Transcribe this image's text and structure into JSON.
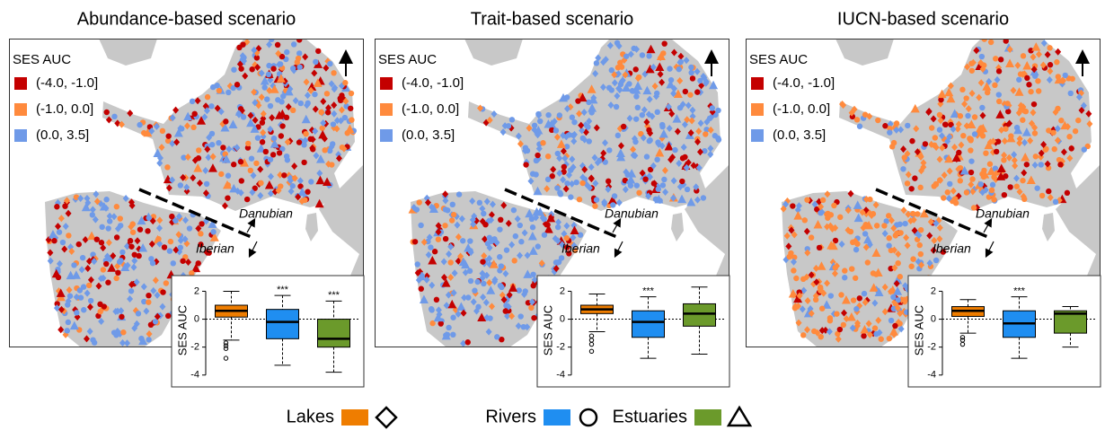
{
  "legend": [
    {
      "name": "Lakes",
      "color": "#ef7d00",
      "shape": "diamond"
    },
    {
      "name": "Rivers",
      "color": "#1f8ef1",
      "shape": "circle"
    },
    {
      "name": "Estuaries",
      "color": "#6b9a2b",
      "shape": "triangle"
    }
  ],
  "map_legend": {
    "title": "SES AUC",
    "classes": [
      {
        "label": "(-4.0, -1.0]",
        "color": "#c40000"
      },
      {
        "label": "(-1.0, 0.0]",
        "color": "#ff8a3d"
      },
      {
        "label": "(0.0, 3.5]",
        "color": "#6f9ae8"
      }
    ]
  },
  "map_labels": [
    "Danubian",
    "Iberian"
  ],
  "chart_data": [
    {
      "type": "box",
      "title": "Abundance-based scenario",
      "ylabel": "SES AUC",
      "ylim": [
        -4.4,
        2.8
      ],
      "yticks": [
        -4,
        -2,
        0,
        2
      ],
      "reference_line": 0,
      "boxes": [
        {
          "min": -1.5,
          "q1": 0.15,
          "median": 0.6,
          "q3": 1.0,
          "max": 2.0,
          "outliers": [
            -1.7,
            -1.9,
            -2.1,
            -2.8
          ],
          "significance": null
        },
        {
          "min": -3.3,
          "q1": -1.4,
          "median": -0.2,
          "q3": 0.7,
          "max": 1.7,
          "outliers": [],
          "significance": "***"
        },
        {
          "min": -3.8,
          "q1": -2.0,
          "median": -1.4,
          "q3": 0.0,
          "max": 1.3,
          "outliers": [],
          "significance": "***"
        }
      ]
    },
    {
      "type": "box",
      "title": "Trait-based scenario",
      "ylabel": "SES AUC",
      "ylim": [
        -4.4,
        2.8
      ],
      "yticks": [
        -4,
        -2,
        0,
        2
      ],
      "reference_line": 0,
      "boxes": [
        {
          "min": -0.9,
          "q1": 0.4,
          "median": 0.7,
          "q3": 1.0,
          "max": 1.8,
          "outliers": [
            -1.2,
            -1.5,
            -1.8,
            -2.3
          ],
          "significance": null
        },
        {
          "min": -2.8,
          "q1": -1.3,
          "median": -0.2,
          "q3": 0.6,
          "max": 1.6,
          "outliers": [],
          "significance": "***"
        },
        {
          "min": -2.5,
          "q1": -0.5,
          "median": 0.4,
          "q3": 1.1,
          "max": 2.3,
          "outliers": [],
          "significance": null
        }
      ]
    },
    {
      "type": "box",
      "title": "IUCN-based scenario",
      "ylabel": "SES AUC",
      "ylim": [
        -4.4,
        2.8
      ],
      "yticks": [
        -4,
        -2,
        0,
        2
      ],
      "reference_line": 0,
      "boxes": [
        {
          "min": -1.0,
          "q1": 0.2,
          "median": 0.6,
          "q3": 0.9,
          "max": 1.4,
          "outliers": [
            -1.3,
            -1.5,
            -1.8
          ],
          "significance": null
        },
        {
          "min": -2.8,
          "q1": -1.3,
          "median": -0.3,
          "q3": 0.6,
          "max": 1.6,
          "outliers": [],
          "significance": "***"
        },
        {
          "min": -2.0,
          "q1": -1.0,
          "median": 0.4,
          "q3": 0.6,
          "max": 0.9,
          "outliers": [],
          "significance": null
        }
      ]
    }
  ]
}
